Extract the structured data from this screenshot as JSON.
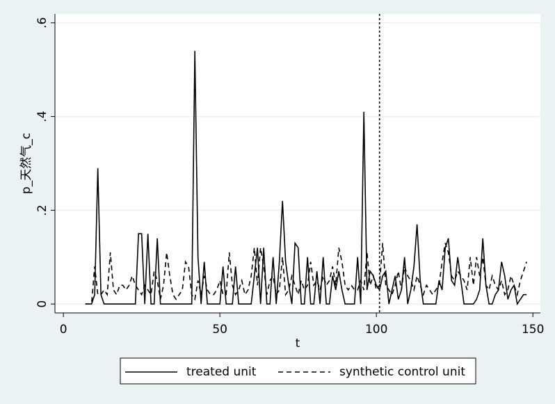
{
  "chart_data": {
    "type": "line",
    "ylabel": "p_天然气_c",
    "xlabel": "t",
    "x": [
      7,
      8,
      9,
      10,
      11,
      12,
      13,
      14,
      15,
      16,
      17,
      18,
      19,
      20,
      21,
      22,
      23,
      24,
      25,
      26,
      27,
      28,
      29,
      30,
      31,
      32,
      33,
      34,
      35,
      36,
      37,
      38,
      39,
      40,
      41,
      42,
      43,
      44,
      45,
      46,
      47,
      48,
      49,
      50,
      51,
      52,
      53,
      54,
      55,
      56,
      57,
      58,
      59,
      60,
      61,
      62,
      63,
      64,
      65,
      66,
      67,
      68,
      69,
      70,
      71,
      72,
      73,
      74,
      75,
      76,
      77,
      78,
      79,
      80,
      81,
      82,
      83,
      84,
      85,
      86,
      87,
      88,
      89,
      90,
      91,
      92,
      93,
      94,
      95,
      96,
      97,
      98,
      99,
      100,
      101,
      102,
      103,
      104,
      105,
      106,
      107,
      108,
      109,
      110,
      111,
      112,
      113,
      114,
      115,
      116,
      117,
      118,
      119,
      120,
      121,
      122,
      123,
      124,
      125,
      126,
      127,
      128,
      129,
      130,
      131,
      132,
      133,
      134,
      135,
      136,
      137,
      138,
      139,
      140,
      141,
      142,
      143,
      144,
      145,
      146,
      147,
      148
    ],
    "series": [
      {
        "name": "treated unit",
        "color": "#000000",
        "dash": false,
        "values": [
          0,
          0,
          0,
          0.02,
          0.29,
          0.02,
          0,
          0,
          0,
          0,
          0,
          0,
          0,
          0,
          0,
          0,
          0,
          0.15,
          0.15,
          0,
          0.15,
          0,
          0,
          0.14,
          0,
          0,
          0,
          0,
          0,
          0,
          0,
          0,
          0,
          0,
          0,
          0.54,
          0.1,
          0,
          0.09,
          0,
          0,
          0,
          0,
          0,
          0.08,
          0,
          0,
          0,
          0.08,
          0,
          0,
          0,
          0,
          0,
          0.06,
          0.12,
          0,
          0.12,
          0,
          0,
          0.1,
          0,
          0.09,
          0.22,
          0.09,
          0.04,
          0,
          0.13,
          0.12,
          0,
          0,
          0.1,
          0,
          0,
          0.07,
          0,
          0.1,
          0,
          0,
          0.06,
          0.03,
          0.07,
          0.03,
          0,
          0,
          0,
          0,
          0.1,
          0,
          0.41,
          0.03,
          0.07,
          0.06,
          0.04,
          0.03,
          0.06,
          0.07,
          0,
          0.03,
          0.06,
          0.01,
          0.03,
          0.1,
          0,
          0.03,
          0.08,
          0.17,
          0.05,
          0,
          0,
          0,
          0,
          0,
          0.05,
          0.03,
          0.12,
          0.14,
          0.05,
          0.04,
          0.1,
          0.05,
          0,
          0,
          0,
          0,
          0.01,
          0.03,
          0.14,
          0.04,
          0,
          0,
          0.02,
          0.03,
          0.09,
          0.06,
          0.01,
          0.03,
          0.04,
          0,
          0.01,
          0.02,
          0.02
        ]
      },
      {
        "name": "synthetic control unit",
        "color": "#000000",
        "dash": true,
        "values": [
          0,
          0,
          0,
          0.08,
          0.02,
          0.02,
          0.03,
          0.02,
          0.11,
          0.03,
          0.02,
          0.04,
          0.04,
          0.03,
          0.04,
          0.06,
          0.04,
          0.03,
          0.02,
          0.04,
          0.03,
          0.02,
          0.07,
          0.05,
          0.01,
          0.04,
          0.11,
          0.06,
          0.02,
          0.01,
          0.02,
          0.03,
          0.09,
          0.08,
          0.02,
          0.01,
          0.05,
          0.02,
          0.06,
          0.03,
          0.02,
          0.02,
          0.03,
          0.05,
          0.02,
          0.02,
          0.11,
          0.04,
          0.02,
          0.03,
          0.05,
          0.02,
          0.03,
          0.06,
          0.12,
          0.04,
          0.12,
          0.08,
          0.02,
          0.05,
          0.06,
          0.02,
          0.03,
          0.1,
          0.02,
          0.03,
          0.06,
          0.04,
          0.02,
          0.05,
          0.03,
          0.04,
          0.09,
          0.04,
          0.05,
          0.03,
          0.06,
          0.04,
          0.05,
          0.08,
          0.04,
          0.12,
          0.09,
          0.04,
          0.03,
          0.04,
          0.03,
          0.03,
          0.05,
          0.03,
          0.11,
          0.04,
          0.06,
          0.03,
          0.04,
          0.13,
          0.04,
          0.03,
          0.02,
          0.04,
          0.07,
          0.03,
          0.08,
          0.06,
          0.05,
          0.03,
          0.06,
          0.04,
          0.02,
          0.04,
          0.03,
          0.02,
          0.03,
          0.04,
          0.09,
          0.13,
          0.11,
          0.06,
          0.05,
          0.07,
          0.06,
          0.05,
          0.03,
          0.1,
          0.04,
          0.1,
          0.06,
          0.1,
          0.04,
          0.03,
          0.06,
          0.04,
          0.03,
          0.05,
          0.02,
          0.03,
          0.06,
          0.04,
          0.02,
          0.05,
          0.07,
          0.09
        ]
      }
    ],
    "xlim": [
      -2.7,
      152.4
    ],
    "xticks": [
      0,
      50,
      100,
      150
    ],
    "ylim": [
      -0.019,
      0.619
    ],
    "yticks": [
      0,
      {
        "value": 0.2,
        "label": ".2"
      },
      {
        "value": 0.4,
        "label": ".4"
      },
      {
        "value": 0.6,
        "label": ".6"
      }
    ],
    "xline": 101,
    "grid": true,
    "legend": "bottom"
  }
}
